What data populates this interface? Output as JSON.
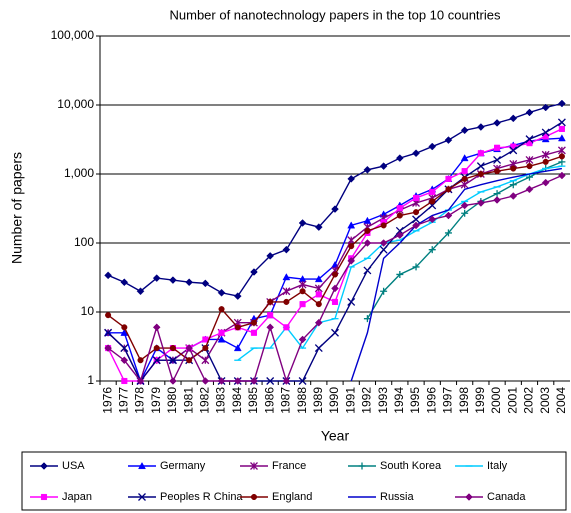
{
  "chart_data": {
    "type": "line",
    "title": "Number of nanotechnology papers in the top 10 countries",
    "x_label": "Year",
    "y_label": "Number of papers",
    "log_scale": true,
    "grid": true,
    "legend_position": "bottom",
    "categories": [
      "1976",
      "1977",
      "1978",
      "1979",
      "1980",
      "1981",
      "1982",
      "1983",
      "1984",
      "1985",
      "1986",
      "1987",
      "1988",
      "1989",
      "1990",
      "1991",
      "1992",
      "1993",
      "1994",
      "1995",
      "1996",
      "1997",
      "1998",
      "1999",
      "2000",
      "2001",
      "2002",
      "2003",
      "2004"
    ],
    "ylim": [
      1,
      100000
    ],
    "yticks": [
      1,
      10,
      100,
      {
        "value": 1000,
        "label": "1,000"
      },
      {
        "value": 10000,
        "label": "10,000"
      },
      {
        "value": 100000,
        "label": "100,000"
      }
    ],
    "series": [
      {
        "name": "USA",
        "color": "#000080",
        "marker": "diamond",
        "values": [
          34,
          27,
          20,
          31,
          29,
          27,
          26,
          19,
          17,
          38,
          65,
          80,
          195,
          170,
          310,
          850,
          1150,
          1300,
          1700,
          2000,
          2500,
          3100,
          4300,
          4800,
          5500,
          6400,
          7800,
          9200,
          10500
        ]
      },
      {
        "name": "Germany",
        "color": "#0000ff",
        "marker": "triangle",
        "values": [
          5,
          5,
          1,
          3,
          2,
          3,
          4,
          4,
          3,
          8,
          9,
          32,
          30,
          30,
          48,
          180,
          210,
          260,
          350,
          480,
          600,
          850,
          1700,
          2000,
          2300,
          2600,
          3000,
          3200,
          3300
        ]
      },
      {
        "name": "France",
        "color": "#800080",
        "marker": "asterisk",
        "values": [
          5,
          3,
          1,
          2,
          2,
          3,
          2,
          5,
          7,
          7,
          14,
          20,
          25,
          22,
          40,
          110,
          170,
          230,
          300,
          380,
          450,
          600,
          700,
          1000,
          1200,
          1400,
          1600,
          1900,
          2200
        ]
      },
      {
        "name": "South Korea",
        "color": "#008080",
        "marker": "plus",
        "values": [
          null,
          null,
          null,
          null,
          null,
          null,
          null,
          null,
          null,
          null,
          null,
          null,
          null,
          null,
          null,
          null,
          8,
          20,
          35,
          45,
          80,
          140,
          270,
          400,
          520,
          700,
          900,
          1200,
          1500
        ]
      },
      {
        "name": "Italy",
        "color": "#00ccff",
        "marker": "dash",
        "values": [
          null,
          null,
          null,
          null,
          null,
          null,
          null,
          null,
          2,
          3,
          3,
          6,
          3,
          7,
          8,
          45,
          60,
          100,
          110,
          150,
          200,
          300,
          400,
          550,
          650,
          800,
          1000,
          1200,
          1300
        ]
      },
      {
        "name": "Japan",
        "color": "#ff00ff",
        "marker": "square",
        "values": [
          3,
          1,
          1,
          2,
          3,
          3,
          4,
          5,
          6,
          5,
          9,
          6,
          13,
          18,
          14,
          60,
          140,
          200,
          320,
          450,
          550,
          850,
          1100,
          2000,
          2400,
          2500,
          2800,
          3500,
          4500
        ]
      },
      {
        "name": "Peoples R China",
        "color": "#000080",
        "marker": "x",
        "values": [
          5,
          3,
          1,
          2,
          2,
          2,
          3,
          1,
          1,
          1,
          1,
          1,
          1,
          3,
          5,
          14,
          40,
          80,
          150,
          220,
          350,
          600,
          900,
          1300,
          1600,
          2200,
          3200,
          4000,
          5600
        ]
      },
      {
        "name": "England",
        "color": "#800000",
        "marker": "circle",
        "values": [
          9,
          6,
          2,
          3,
          3,
          2,
          3,
          11,
          6,
          7,
          14,
          14,
          20,
          13,
          35,
          90,
          150,
          180,
          250,
          280,
          400,
          600,
          850,
          1000,
          1100,
          1200,
          1300,
          1500,
          1800
        ]
      },
      {
        "name": "Russia",
        "color": "#0000cc",
        "values": [
          null,
          null,
          null,
          null,
          null,
          null,
          null,
          null,
          null,
          null,
          null,
          null,
          null,
          null,
          null,
          1,
          5,
          60,
          100,
          180,
          250,
          300,
          600,
          700,
          800,
          900,
          1000,
          1100,
          1200
        ]
      },
      {
        "name": "Canada",
        "color": "#800080",
        "marker": "diamond",
        "values": [
          3,
          2,
          1,
          6,
          1,
          3,
          1,
          1,
          1,
          1,
          6,
          1,
          4,
          7,
          22,
          55,
          100,
          100,
          130,
          180,
          220,
          250,
          350,
          380,
          420,
          480,
          600,
          750,
          950
        ]
      }
    ]
  }
}
